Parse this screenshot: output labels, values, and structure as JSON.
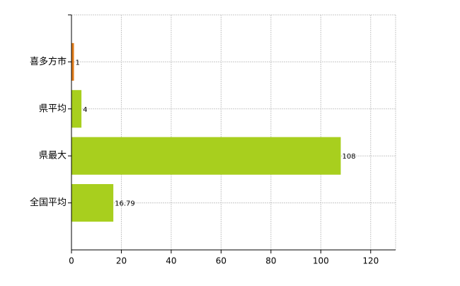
{
  "chart_data": {
    "type": "hbar",
    "categories": [
      "喜多方市",
      "県平均",
      "県最大",
      "全国平均"
    ],
    "values": [
      1,
      4,
      108,
      16.79
    ],
    "colors": [
      "#e07b1a",
      "#a8cf1e",
      "#a8cf1e",
      "#a8cf1e"
    ],
    "xlim": [
      0,
      130
    ],
    "xticks": [
      0,
      20,
      40,
      60,
      80,
      100,
      120
    ],
    "grid": true
  }
}
